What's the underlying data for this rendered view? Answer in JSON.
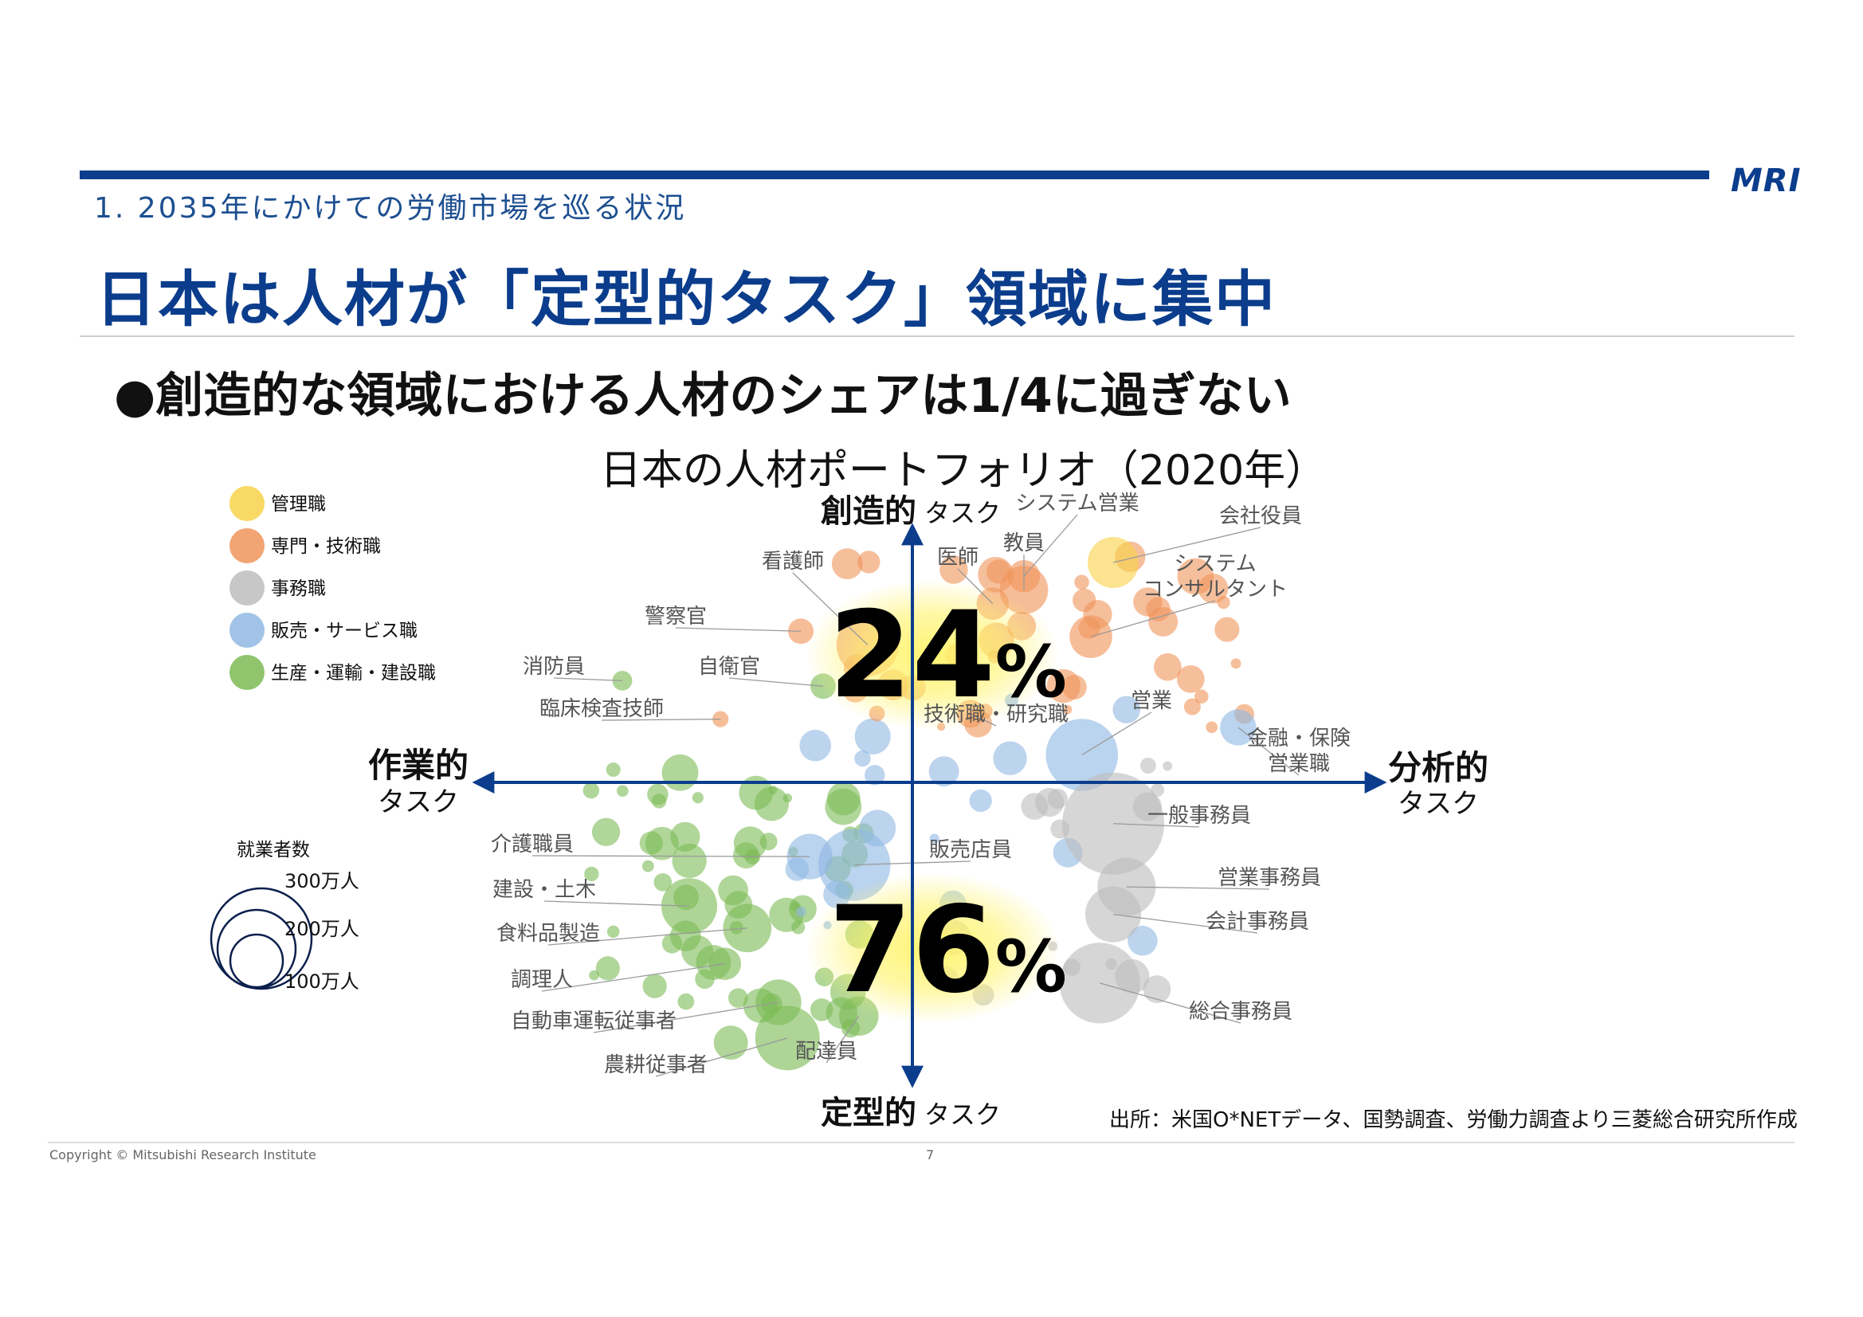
{
  "header": {
    "logo": "MRI",
    "section": "1. 2035年にかけての労働市場を巡る状況",
    "title": "日本は人材が「定型的タスク」領域に集中",
    "bullet": "●創造的な領域における人材のシェアは1/4に過ぎない"
  },
  "footer": {
    "copyright": "Copyright © Mitsubishi Research Institute",
    "page": "7",
    "source": "出所：米国O*NETデータ、国勢調査、労働力調査より三菱総合研究所作成"
  },
  "colors": {
    "brand": "#0b3d8c",
    "管理職": "#f8d24a",
    "専門・技術職": "#f0955a",
    "事務職": "#bdbdbd",
    "販売・サービス職": "#8fb8e3",
    "生産・運輸・建設職": "#7cbb55"
  },
  "chart_data": {
    "type": "scatter",
    "title": "日本の人材ポートフォリオ（2020年）",
    "axes": {
      "top": {
        "main": "創造的",
        "sub": "タスク"
      },
      "bottom": {
        "main": "定型的",
        "sub": "タスク"
      },
      "left": {
        "main": "作業的",
        "sub": "タスク"
      },
      "right": {
        "main": "分析的",
        "sub": "タスク"
      }
    },
    "shares": {
      "upper": {
        "value": "24",
        "unit": "%"
      },
      "lower": {
        "value": "76",
        "unit": "%"
      }
    },
    "legend": {
      "items": [
        "管理職",
        "専門・技術職",
        "事務職",
        "販売・サービス職",
        "生産・運輸・建設職"
      ],
      "size_title": "就業者数",
      "size_labels": [
        "300万人",
        "200万人",
        "100万人"
      ],
      "size_values": [
        300,
        200,
        100
      ]
    },
    "x_range": [
      -1,
      1
    ],
    "y_range": [
      -1,
      1
    ],
    "labeled_points": [
      {
        "name": "システム営業",
        "x": 0.25,
        "y": 0.75,
        "size": 40,
        "category": "専門・技術職"
      },
      {
        "name": "会社役員",
        "x": 0.45,
        "y": 0.8,
        "size": 100,
        "category": "管理職"
      },
      {
        "name": "教員",
        "x": 0.25,
        "y": 0.7,
        "size": 90,
        "category": "専門・技術職"
      },
      {
        "name": "医師",
        "x": 0.18,
        "y": 0.65,
        "size": 40,
        "category": "専門・技術職"
      },
      {
        "name": "看護師",
        "x": -0.1,
        "y": 0.5,
        "size": 150,
        "category": "専門・技術職"
      },
      {
        "name": "システム コンサルタント",
        "x": 0.4,
        "y": 0.53,
        "size": 70,
        "category": "専門・技術職"
      },
      {
        "name": "警察官",
        "x": -0.25,
        "y": 0.55,
        "size": 25,
        "category": "専門・技術職"
      },
      {
        "name": "消防員",
        "x": -0.65,
        "y": 0.37,
        "size": 15,
        "category": "生産・運輸・建設職"
      },
      {
        "name": "自衛官",
        "x": -0.2,
        "y": 0.35,
        "size": 25,
        "category": "生産・運輸・建設職"
      },
      {
        "name": "臨床検査技師",
        "x": -0.43,
        "y": 0.23,
        "size": 10,
        "category": "専門・技術職"
      },
      {
        "name": "技術職・研究職",
        "x": 0.13,
        "y": 0.25,
        "size": 30,
        "category": "専門・技術職"
      },
      {
        "name": "営業",
        "x": 0.38,
        "y": 0.1,
        "size": 200,
        "category": "販売・サービス職"
      },
      {
        "name": "金融・保険 営業職",
        "x": 0.73,
        "y": 0.2,
        "size": 50,
        "category": "販売・サービス職"
      },
      {
        "name": "一般事務員",
        "x": 0.45,
        "y": -0.15,
        "size": 400,
        "category": "事務職"
      },
      {
        "name": "販売店員",
        "x": -0.13,
        "y": -0.3,
        "size": 200,
        "category": "販売・サービス職"
      },
      {
        "name": "介護職員",
        "x": -0.23,
        "y": -0.27,
        "size": 80,
        "category": "販売・サービス職"
      },
      {
        "name": "営業事務員",
        "x": 0.48,
        "y": -0.38,
        "size": 130,
        "category": "事務職"
      },
      {
        "name": "会計事務員",
        "x": 0.45,
        "y": -0.48,
        "size": 120,
        "category": "事務職"
      },
      {
        "name": "建設・土木",
        "x": -0.5,
        "y": -0.45,
        "size": 120,
        "category": "生産・運輸・建設職"
      },
      {
        "name": "食料品製造",
        "x": -0.37,
        "y": -0.53,
        "size": 90,
        "category": "生産・運輸・建設職"
      },
      {
        "name": "調理人",
        "x": -0.42,
        "y": -0.66,
        "size": 40,
        "category": "生産・運輸・建設職"
      },
      {
        "name": "総合事務員",
        "x": 0.42,
        "y": -0.73,
        "size": 250,
        "category": "事務職"
      },
      {
        "name": "自動車運転従事者",
        "x": -0.3,
        "y": -0.8,
        "size": 80,
        "category": "生産・運輸・建設職"
      },
      {
        "name": "配達員",
        "x": -0.12,
        "y": -0.85,
        "size": 60,
        "category": "生産・運輸・建設職"
      },
      {
        "name": "農耕従事者",
        "x": -0.28,
        "y": -0.93,
        "size": 160,
        "category": "生産・運輸・建設職"
      }
    ]
  }
}
